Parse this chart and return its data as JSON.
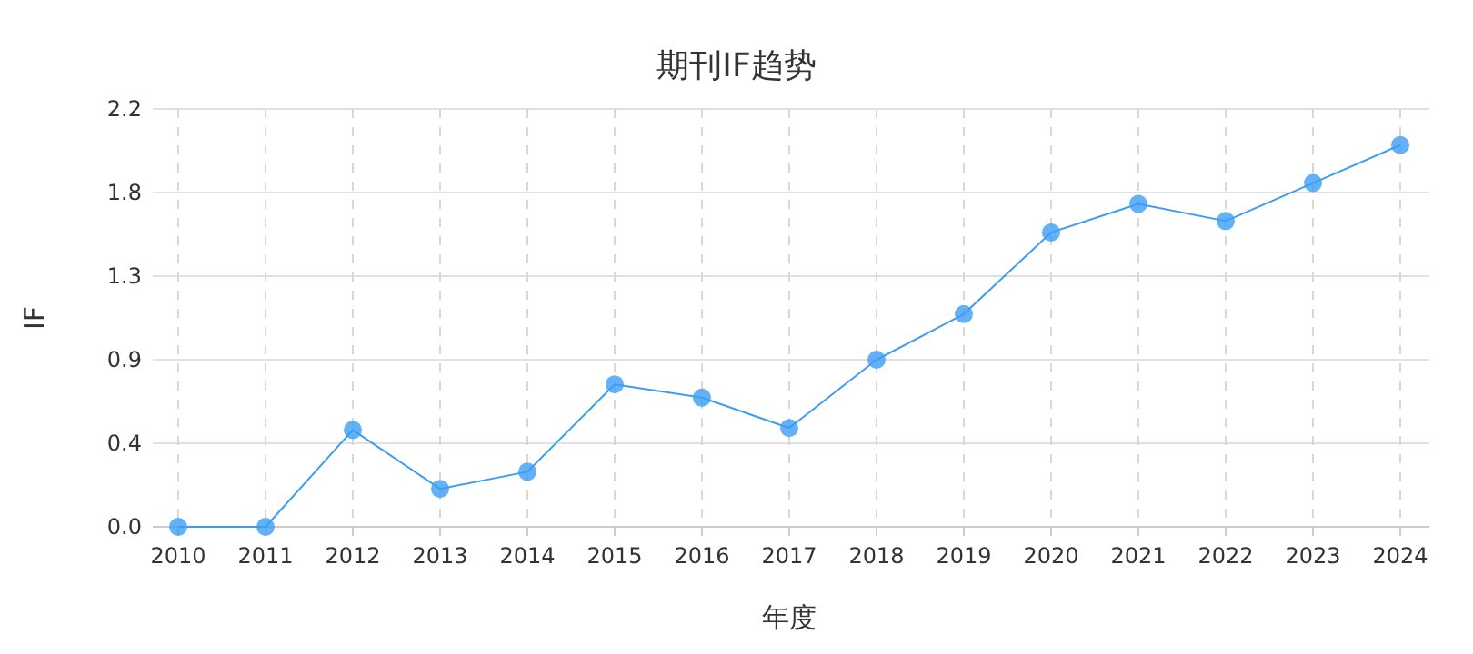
{
  "chart_data": {
    "type": "line",
    "title": "期刊IF趋势",
    "xlabel": "年度",
    "ylabel": "IF",
    "categories": [
      "2010",
      "2011",
      "2012",
      "2013",
      "2014",
      "2015",
      "2016",
      "2017",
      "2018",
      "2019",
      "2020",
      "2021",
      "2022",
      "2023",
      "2024"
    ],
    "series": [
      {
        "color": "#3d9df5",
        "values": [
          0,
          0,
          0.51,
          0.2,
          0.29,
          0.75,
          0.68,
          0.52,
          0.88,
          1.12,
          1.55,
          1.7,
          1.61,
          1.81,
          2.01
        ]
      }
    ],
    "ylim": [
      0,
      2.2
    ],
    "yticks": [
      {
        "value": 0,
        "label": "0.0"
      },
      {
        "value": 0.44,
        "label": "0.4"
      },
      {
        "value": 0.88,
        "label": "0.9"
      },
      {
        "value": 1.32,
        "label": "1.3"
      },
      {
        "value": 1.76,
        "label": "1.8"
      },
      {
        "value": 2.2,
        "label": "2.2"
      }
    ],
    "grid": true,
    "marker": "circle",
    "line_style": "solid"
  }
}
